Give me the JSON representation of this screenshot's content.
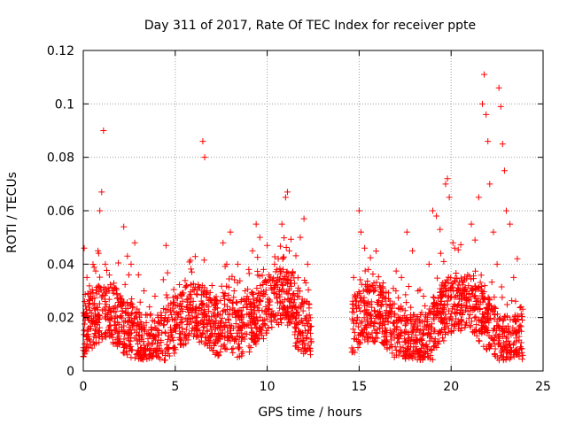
{
  "chart_data": {
    "type": "scatter",
    "title": "Day 311 of 2017, Rate Of TEC Index for receiver ppte",
    "xlabel": "GPS time / hours",
    "ylabel": "ROTI / TECUs",
    "xlim": [
      0,
      25
    ],
    "ylim": [
      0,
      0.12
    ],
    "xticks": [
      0,
      5,
      10,
      15,
      20,
      25
    ],
    "xtick_labels": [
      "0",
      "5",
      "10",
      "15",
      "20",
      "25"
    ],
    "yticks": [
      0,
      0.02,
      0.04,
      0.06,
      0.08,
      0.1,
      0.12
    ],
    "ytick_labels": [
      "0",
      "0.02",
      "0.04",
      "0.06",
      "0.08",
      "0.1",
      "0.12"
    ],
    "grid": true,
    "marker": "+",
    "color": "#ff0000",
    "gap_hours": [
      12.4,
      14.6
    ],
    "series": [
      {
        "name": "ROTI",
        "points": [
          [
            0.05,
            0.046
          ],
          [
            0.1,
            0.021
          ],
          [
            0.2,
            0.035
          ],
          [
            0.3,
            0.012
          ],
          [
            0.4,
            0.028
          ],
          [
            0.5,
            0.018
          ],
          [
            0.6,
            0.01
          ],
          [
            0.8,
            0.045
          ],
          [
            0.9,
            0.06
          ],
          [
            1.0,
            0.067
          ],
          [
            1.1,
            0.09
          ],
          [
            1.2,
            0.04
          ],
          [
            1.4,
            0.022
          ],
          [
            1.6,
            0.03
          ],
          [
            1.8,
            0.016
          ],
          [
            2.0,
            0.025
          ],
          [
            2.2,
            0.054
          ],
          [
            2.4,
            0.043
          ],
          [
            2.6,
            0.04
          ],
          [
            2.8,
            0.048
          ],
          [
            3.0,
            0.036
          ],
          [
            3.3,
            0.03
          ],
          [
            3.6,
            0.024
          ],
          [
            3.9,
            0.028
          ],
          [
            4.2,
            0.02
          ],
          [
            4.5,
            0.047
          ],
          [
            4.8,
            0.021
          ],
          [
            5.0,
            0.028
          ],
          [
            5.3,
            0.018
          ],
          [
            5.6,
            0.024
          ],
          [
            5.9,
            0.015
          ],
          [
            6.2,
            0.02
          ],
          [
            6.5,
            0.086
          ],
          [
            6.6,
            0.08
          ],
          [
            6.8,
            0.024
          ],
          [
            7.0,
            0.032
          ],
          [
            7.2,
            0.025
          ],
          [
            7.6,
            0.048
          ],
          [
            7.8,
            0.04
          ],
          [
            8.0,
            0.052
          ],
          [
            8.2,
            0.03
          ],
          [
            8.4,
            0.04
          ],
          [
            8.6,
            0.02
          ],
          [
            8.8,
            0.03
          ],
          [
            9.0,
            0.038
          ],
          [
            9.2,
            0.045
          ],
          [
            9.4,
            0.055
          ],
          [
            9.6,
            0.05
          ],
          [
            9.8,
            0.038
          ],
          [
            10.0,
            0.047
          ],
          [
            10.2,
            0.032
          ],
          [
            10.4,
            0.04
          ],
          [
            10.6,
            0.042
          ],
          [
            10.8,
            0.055
          ],
          [
            11.0,
            0.065
          ],
          [
            11.1,
            0.067
          ],
          [
            11.2,
            0.045
          ],
          [
            11.4,
            0.02
          ],
          [
            11.6,
            0.018
          ],
          [
            11.8,
            0.05
          ],
          [
            12.0,
            0.057
          ],
          [
            12.1,
            0.033
          ],
          [
            12.2,
            0.04
          ],
          [
            14.7,
            0.035
          ],
          [
            14.8,
            0.028
          ],
          [
            15.0,
            0.06
          ],
          [
            15.1,
            0.052
          ],
          [
            15.3,
            0.046
          ],
          [
            15.5,
            0.038
          ],
          [
            15.8,
            0.03
          ],
          [
            16.0,
            0.025
          ],
          [
            16.3,
            0.033
          ],
          [
            16.6,
            0.027
          ],
          [
            17.0,
            0.03
          ],
          [
            17.3,
            0.035
          ],
          [
            17.6,
            0.052
          ],
          [
            17.9,
            0.045
          ],
          [
            18.2,
            0.03
          ],
          [
            18.5,
            0.028
          ],
          [
            18.8,
            0.04
          ],
          [
            19.0,
            0.06
          ],
          [
            19.2,
            0.058
          ],
          [
            19.4,
            0.053
          ],
          [
            19.6,
            0.041
          ],
          [
            19.7,
            0.07
          ],
          [
            19.8,
            0.072
          ],
          [
            19.9,
            0.065
          ],
          [
            20.1,
            0.048
          ],
          [
            20.3,
            0.03
          ],
          [
            20.6,
            0.027
          ],
          [
            20.9,
            0.036
          ],
          [
            21.1,
            0.055
          ],
          [
            21.3,
            0.049
          ],
          [
            21.5,
            0.065
          ],
          [
            21.7,
            0.1
          ],
          [
            21.8,
            0.111
          ],
          [
            21.9,
            0.096
          ],
          [
            22.0,
            0.086
          ],
          [
            22.1,
            0.07
          ],
          [
            22.3,
            0.052
          ],
          [
            22.5,
            0.04
          ],
          [
            22.6,
            0.106
          ],
          [
            22.7,
            0.099
          ],
          [
            22.8,
            0.085
          ],
          [
            22.9,
            0.075
          ],
          [
            23.0,
            0.06
          ],
          [
            23.2,
            0.055
          ],
          [
            23.4,
            0.035
          ],
          [
            23.6,
            0.042
          ],
          [
            23.8,
            0.024
          ]
        ]
      }
    ]
  }
}
